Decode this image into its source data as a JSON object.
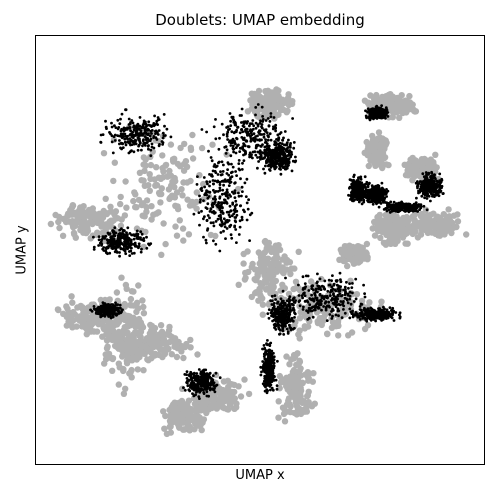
{
  "chart_data": {
    "type": "scatter",
    "title": "Doublets: UMAP embedding",
    "xlabel": "UMAP x",
    "ylabel": "UMAP y",
    "grid": false,
    "legend": "none",
    "ticks": "none",
    "series": [
      {
        "color": "#b0b0b0",
        "clusters": [
          {
            "cx": 0.29,
            "cy": 0.65,
            "rx": 0.18,
            "ry": 0.17
          },
          {
            "cx": 0.12,
            "cy": 0.57,
            "rx": 0.1,
            "ry": 0.06
          },
          {
            "cx": 0.13,
            "cy": 0.34,
            "rx": 0.1,
            "ry": 0.06
          },
          {
            "cx": 0.26,
            "cy": 0.28,
            "rx": 0.12,
            "ry": 0.06
          },
          {
            "cx": 0.2,
            "cy": 0.3,
            "rx": 0.06,
            "ry": 0.16
          },
          {
            "cx": 0.52,
            "cy": 0.45,
            "rx": 0.08,
            "ry": 0.12
          },
          {
            "cx": 0.65,
            "cy": 0.36,
            "rx": 0.15,
            "ry": 0.09
          },
          {
            "cx": 0.58,
            "cy": 0.18,
            "rx": 0.05,
            "ry": 0.1
          },
          {
            "cx": 0.4,
            "cy": 0.16,
            "rx": 0.09,
            "ry": 0.06
          },
          {
            "cx": 0.33,
            "cy": 0.11,
            "rx": 0.06,
            "ry": 0.05
          },
          {
            "cx": 0.8,
            "cy": 0.55,
            "rx": 0.06,
            "ry": 0.05
          },
          {
            "cx": 0.86,
            "cy": 0.69,
            "rx": 0.05,
            "ry": 0.04
          },
          {
            "cx": 0.89,
            "cy": 0.56,
            "rx": 0.08,
            "ry": 0.04
          },
          {
            "cx": 0.79,
            "cy": 0.84,
            "rx": 0.08,
            "ry": 0.04
          },
          {
            "cx": 0.76,
            "cy": 0.73,
            "rx": 0.03,
            "ry": 0.05
          },
          {
            "cx": 0.71,
            "cy": 0.49,
            "rx": 0.04,
            "ry": 0.03
          },
          {
            "cx": 0.52,
            "cy": 0.84,
            "rx": 0.06,
            "ry": 0.05
          }
        ]
      },
      {
        "color": "#000000",
        "clusters": [
          {
            "cx": 0.23,
            "cy": 0.77,
            "rx": 0.1,
            "ry": 0.06
          },
          {
            "cx": 0.42,
            "cy": 0.62,
            "rx": 0.08,
            "ry": 0.14
          },
          {
            "cx": 0.48,
            "cy": 0.76,
            "rx": 0.12,
            "ry": 0.09
          },
          {
            "cx": 0.54,
            "cy": 0.72,
            "rx": 0.05,
            "ry": 0.05
          },
          {
            "cx": 0.19,
            "cy": 0.52,
            "rx": 0.08,
            "ry": 0.04
          },
          {
            "cx": 0.16,
            "cy": 0.36,
            "rx": 0.04,
            "ry": 0.02
          },
          {
            "cx": 0.65,
            "cy": 0.39,
            "rx": 0.11,
            "ry": 0.07
          },
          {
            "cx": 0.55,
            "cy": 0.35,
            "rx": 0.04,
            "ry": 0.06
          },
          {
            "cx": 0.76,
            "cy": 0.35,
            "rx": 0.07,
            "ry": 0.02
          },
          {
            "cx": 0.52,
            "cy": 0.22,
            "rx": 0.02,
            "ry": 0.08
          },
          {
            "cx": 0.37,
            "cy": 0.19,
            "rx": 0.05,
            "ry": 0.04
          },
          {
            "cx": 0.72,
            "cy": 0.64,
            "rx": 0.03,
            "ry": 0.04
          },
          {
            "cx": 0.76,
            "cy": 0.63,
            "rx": 0.03,
            "ry": 0.03
          },
          {
            "cx": 0.82,
            "cy": 0.6,
            "rx": 0.06,
            "ry": 0.015
          },
          {
            "cx": 0.88,
            "cy": 0.65,
            "rx": 0.04,
            "ry": 0.04
          },
          {
            "cx": 0.76,
            "cy": 0.82,
            "rx": 0.03,
            "ry": 0.02
          }
        ]
      }
    ]
  }
}
